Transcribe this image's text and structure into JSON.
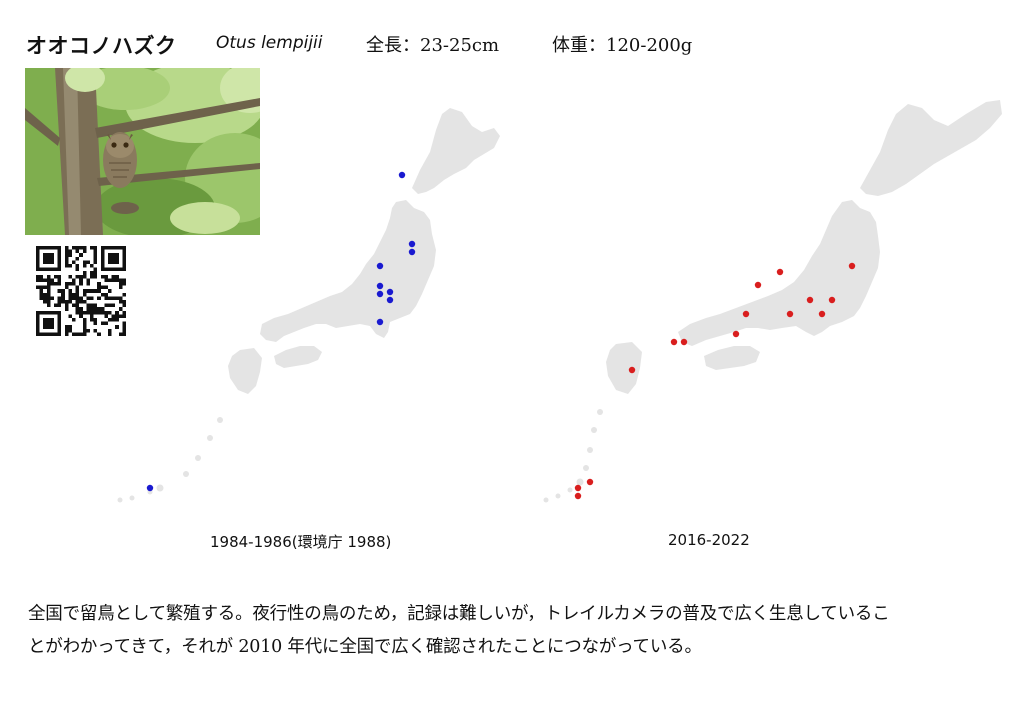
{
  "header": {
    "name_ja": "オオコノハズク",
    "name_sci": "Otus lempijii",
    "length": "全長：23-25cm",
    "weight": "体重：120-200g"
  },
  "photo": {
    "subject": "owl-photo"
  },
  "qr": {
    "icon": "qr-code"
  },
  "maps": [
    {
      "caption": "1984-1986(環境庁 1988)",
      "dot_color": "#1a1ad0"
    },
    {
      "caption": "2016-2022",
      "dot_color": "#d91e1e"
    }
  ],
  "land_color": "#e4e4e4",
  "description": {
    "line1": "全国で留鳥として繁殖する。夜行性の鳥のため，記録は難しいが，トレイルカメラの普及で広く生息しているこ",
    "line2": "とがわかってきて，それが 2010 年代に全国で広く確認されたことにつながっている。"
  }
}
